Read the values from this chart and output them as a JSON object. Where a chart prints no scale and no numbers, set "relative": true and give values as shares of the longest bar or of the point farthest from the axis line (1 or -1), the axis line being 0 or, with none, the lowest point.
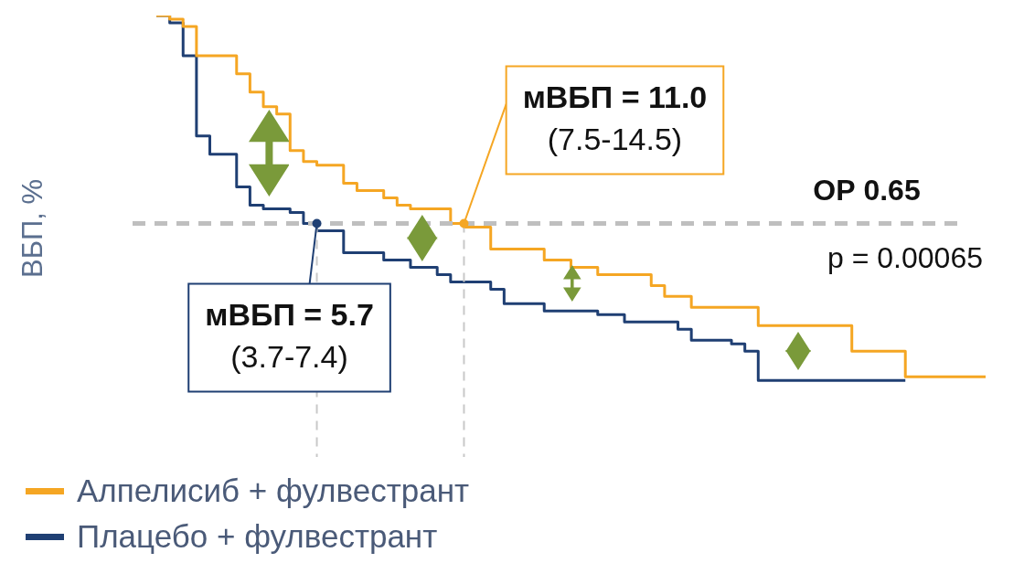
{
  "chart_data": {
    "type": "step",
    "ylabel": "ВБП, %",
    "relative": true,
    "legend": "bottom",
    "categories": [
      null,
      null,
      null,
      null,
      null,
      null,
      null,
      null,
      null,
      null,
      null,
      null,
      null,
      null,
      null,
      null,
      null,
      null,
      null,
      null,
      null,
      null,
      null,
      null,
      null,
      null,
      null,
      null,
      null,
      null,
      null,
      null,
      null,
      null,
      null,
      null,
      null,
      null,
      null,
      null,
      null,
      null,
      null,
      null,
      null,
      null,
      null,
      null,
      null,
      null,
      null,
      null,
      null,
      null,
      null,
      null,
      null,
      null,
      null,
      null,
      null,
      null,
      null
    ],
    "series": [
      {
        "name": "Алпелисиб + фулвестрант",
        "color": "#f5a623",
        "values": [
          1,
          1,
          0.99,
          0.97,
          0.89,
          0.89,
          0.89,
          0.84,
          0.79,
          0.75,
          0.73,
          0.63,
          0.6,
          0.59,
          0.59,
          0.54,
          0.52,
          0.52,
          0.5,
          0.48,
          0.47,
          0.47,
          0.47,
          0.43,
          0.42,
          0.42,
          0.36,
          0.36,
          0.36,
          0.36,
          0.33,
          0.33,
          0.31,
          0.31,
          0.29,
          0.29,
          0.29,
          0.29,
          0.26,
          0.23,
          0.23,
          0.2,
          0.2,
          0.2,
          0.2,
          0.2,
          0.15,
          0.15,
          0.15,
          0.15,
          0.15,
          0.15,
          0.15,
          0.08,
          0.08,
          0.08,
          0.08,
          0.01,
          0.01,
          0.01,
          0.01,
          0.01,
          0.01
        ]
      },
      {
        "name": "Плацебо + фулвестрант",
        "color": "#1f3f73",
        "values": [
          1,
          1,
          0.98,
          0.89,
          0.67,
          0.62,
          0.62,
          0.53,
          0.48,
          0.47,
          0.47,
          0.46,
          0.43,
          0.41,
          0.41,
          0.35,
          0.35,
          0.35,
          0.33,
          0.33,
          0.31,
          0.31,
          0.29,
          0.27,
          0.27,
          0.27,
          0.25,
          0.21,
          0.21,
          0.21,
          0.19,
          0.19,
          0.19,
          0.19,
          0.18,
          0.18,
          0.16,
          0.16,
          0.16,
          0.16,
          0.14,
          0.11,
          0.11,
          0.11,
          0.1,
          0.08,
          0,
          0,
          0,
          0,
          0,
          0,
          0,
          0,
          0,
          0,
          0,
          null,
          null,
          null,
          null,
          null,
          null
        ]
      }
    ],
    "ref_lines": [
      {
        "axis": "y",
        "value": 0.43,
        "color": "#bfbfbf",
        "line_style": "dashed"
      }
    ],
    "annotations": [
      {
        "text": "мВБП = 11.0\n(7.5-14.5)",
        "y": 0.43
      },
      {
        "text": "мВБП = 5.7\n(3.7-7.4)",
        "y": 0.43
      },
      "ОР 0.65",
      "p = 0.00065"
    ]
  }
}
